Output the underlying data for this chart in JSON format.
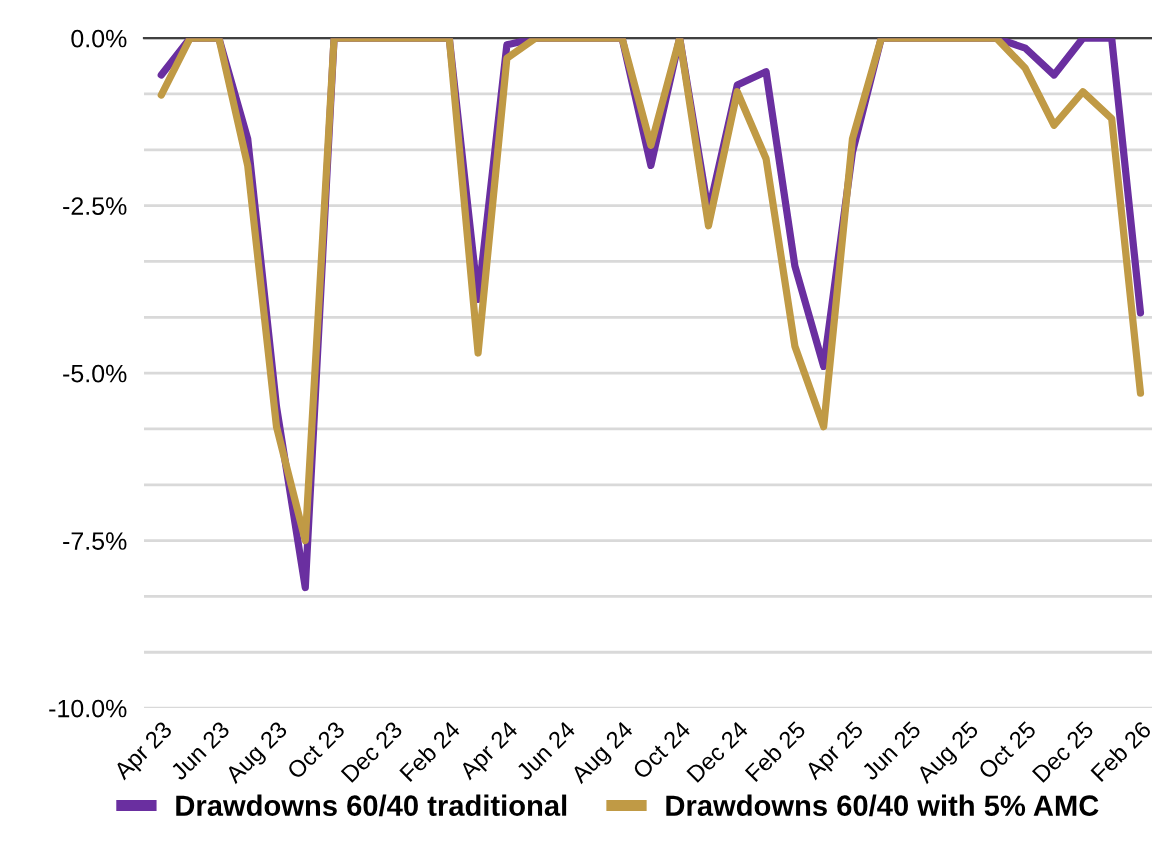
{
  "chart_data": {
    "type": "line",
    "categories": [
      "Apr 23",
      null,
      "Jun 23",
      null,
      "Aug 23",
      null,
      "Oct 23",
      null,
      "Dec 23",
      null,
      "Feb 24",
      null,
      "Apr 24",
      null,
      "Jun 24",
      null,
      "Aug 24",
      null,
      "Oct 24",
      null,
      "Dec 24",
      null,
      "Feb 25",
      null,
      "Apr 25",
      null,
      "Jun 25",
      null,
      "Aug 25",
      null,
      "Oct 25",
      null,
      "Dec 25",
      null,
      "Feb 26"
    ],
    "series": [
      {
        "name": "Drawdowns 60/40 traditional",
        "color": "#6a2fa0",
        "values": [
          -0.55,
          0,
          0,
          -1.5,
          -5.5,
          -8.2,
          0,
          0,
          0,
          0,
          0,
          -3.9,
          -0.1,
          0,
          0,
          0,
          0,
          -1.9,
          0,
          -2.6,
          -0.7,
          -0.5,
          -3.4,
          -4.9,
          -1.7,
          0,
          0,
          0,
          0,
          0,
          -0.15,
          -0.55,
          0,
          0,
          -4.1
        ]
      },
      {
        "name": "Drawdowns 60/40 with 5% AMC",
        "color": "#c09a45",
        "values": [
          -0.85,
          0,
          0,
          -1.9,
          -5.8,
          -7.5,
          0,
          0,
          0,
          0,
          0,
          -4.7,
          -0.3,
          0,
          0,
          0,
          0,
          -1.6,
          0,
          -2.8,
          -0.8,
          -1.8,
          -4.6,
          -5.8,
          -1.5,
          0,
          0,
          0,
          0,
          0,
          -0.45,
          -1.3,
          -0.8,
          -1.2,
          -5.3
        ]
      }
    ],
    "ylim": [
      -10,
      0
    ],
    "yticks": [
      {
        "value": 0,
        "label": "0.0%"
      },
      {
        "value": -0.8333,
        "label": null
      },
      {
        "value": -1.6667,
        "label": null
      },
      {
        "value": -2.5,
        "label": "-2.5%"
      },
      {
        "value": -3.3333,
        "label": null
      },
      {
        "value": -4.1667,
        "label": null
      },
      {
        "value": -5,
        "label": "-5.0%"
      },
      {
        "value": -5.8333,
        "label": null
      },
      {
        "value": -6.6667,
        "label": null
      },
      {
        "value": -7.5,
        "label": "-7.5%"
      },
      {
        "value": -8.3333,
        "label": null
      },
      {
        "value": -9.1667,
        "label": null
      },
      {
        "value": -10,
        "label": "-10.0%"
      }
    ],
    "grid": "y",
    "legend": "bottom",
    "marker": "none",
    "line_style": "solid"
  }
}
